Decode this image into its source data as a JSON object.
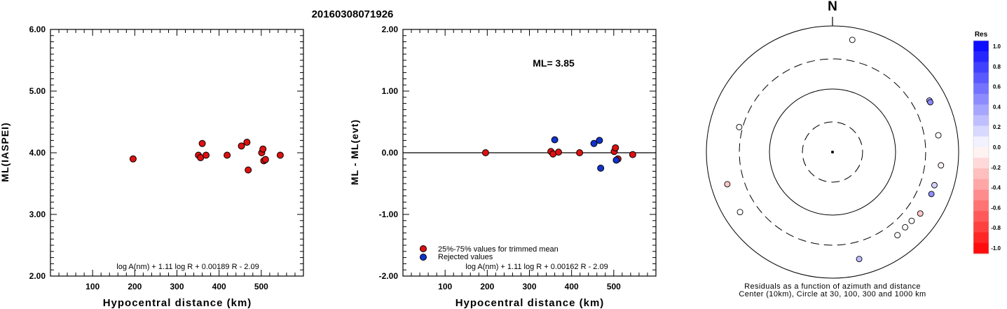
{
  "page": {
    "title": "20160308071926"
  },
  "chart_data": [
    {
      "type": "scatter",
      "title": "",
      "xlabel": "Hypocentral distance (km)",
      "ylabel": "ML(IASPEI)",
      "xlim": [
        0,
        600
      ],
      "ylim": [
        2.0,
        6.0
      ],
      "xticks": [
        "100",
        "200",
        "300",
        "400",
        "500"
      ],
      "yticks": [
        "6.00",
        "5.00",
        "4.00",
        "3.00",
        "2.00"
      ],
      "formula": "log A(nm) + 1.11 log R + 0.00189 R - 2.09",
      "marker_color": "#dd1111",
      "points": [
        {
          "x": 196,
          "y": 3.9
        },
        {
          "x": 351,
          "y": 3.96
        },
        {
          "x": 356,
          "y": 3.92
        },
        {
          "x": 360,
          "y": 4.15
        },
        {
          "x": 369,
          "y": 3.96
        },
        {
          "x": 419,
          "y": 3.96
        },
        {
          "x": 453,
          "y": 4.11
        },
        {
          "x": 466,
          "y": 4.17
        },
        {
          "x": 469,
          "y": 3.72
        },
        {
          "x": 501,
          "y": 4.0
        },
        {
          "x": 504,
          "y": 4.06
        },
        {
          "x": 506,
          "y": 3.87
        },
        {
          "x": 510,
          "y": 3.89
        },
        {
          "x": 545,
          "y": 3.96
        }
      ]
    },
    {
      "type": "scatter",
      "title": "",
      "xlabel": "Hypocentral distance (km)",
      "ylabel": "ML - ML(evt)",
      "xlim": [
        0,
        600
      ],
      "ylim": [
        -2.0,
        2.0
      ],
      "xticks": [
        "100",
        "200",
        "300",
        "400",
        "500"
      ],
      "yticks": [
        "2.00",
        "1.00",
        "0.00",
        "-1.00",
        "-2.00"
      ],
      "annotation": "ML= 3.85",
      "formula": "log A(nm) + 1.11 log R + 0.00162 R - 2.09",
      "legend": [
        {
          "label": "25%-75% values for trimmed mean",
          "color": "#dd1111"
        },
        {
          "label": "Rejected values",
          "color": "#1133cc"
        }
      ],
      "series": [
        {
          "name": "25%-75% values for trimmed mean",
          "color": "#dd1111",
          "points": [
            {
              "x": 196,
              "y": 0.0
            },
            {
              "x": 351,
              "y": 0.02
            },
            {
              "x": 356,
              "y": -0.02
            },
            {
              "x": 369,
              "y": 0.01
            },
            {
              "x": 419,
              "y": 0.0
            },
            {
              "x": 501,
              "y": 0.02
            },
            {
              "x": 504,
              "y": 0.08
            },
            {
              "x": 510,
              "y": -0.1
            },
            {
              "x": 545,
              "y": -0.03
            }
          ]
        },
        {
          "name": "Rejected values",
          "color": "#1133cc",
          "points": [
            {
              "x": 360,
              "y": 0.21
            },
            {
              "x": 453,
              "y": 0.15
            },
            {
              "x": 466,
              "y": 0.2
            },
            {
              "x": 469,
              "y": -0.25
            },
            {
              "x": 506,
              "y": -0.12
            }
          ]
        }
      ]
    },
    {
      "type": "scatter",
      "title": "N",
      "caption_line1": "Residuals as a function of azimuth and distance",
      "caption_line2": "Center (10km), Circle at 30, 100, 300 and 1000 km",
      "rings_km": [
        30,
        100,
        300,
        1000
      ],
      "colorbar": {
        "label": "Res",
        "ticks": [
          "1.0",
          "0.8",
          "0.6",
          "0.4",
          "0.2",
          "0.0",
          "-0.2",
          "-0.4",
          "-0.6",
          "-0.8",
          "-1.0"
        ],
        "max_color": "#0000ff",
        "zero_color": "#ffffff",
        "min_color": "#ff0000"
      },
      "stations": [
        {
          "azimuth_deg": 10,
          "distance_km": 640,
          "residual": 0.0
        },
        {
          "azimuth_deg": 62,
          "distance_km": 550,
          "residual": 0.15
        },
        {
          "azimuth_deg": 63,
          "distance_km": 550,
          "residual": 0.21
        },
        {
          "azimuth_deg": 81,
          "distance_km": 500,
          "residual": 0.0
        },
        {
          "azimuth_deg": 97,
          "distance_km": 540,
          "residual": -0.02
        },
        {
          "azimuth_deg": 108,
          "distance_km": 500,
          "residual": 0.08
        },
        {
          "azimuth_deg": 113,
          "distance_km": 505,
          "residual": 0.2
        },
        {
          "azimuth_deg": 125,
          "distance_km": 500,
          "residual": -0.1
        },
        {
          "azimuth_deg": 131,
          "distance_km": 460,
          "residual": 0.0
        },
        {
          "azimuth_deg": 136,
          "distance_km": 455,
          "residual": 0.0
        },
        {
          "azimuth_deg": 142,
          "distance_km": 470,
          "residual": 0.0
        },
        {
          "azimuth_deg": 166,
          "distance_km": 560,
          "residual": 0.12
        },
        {
          "azimuth_deg": 237,
          "distance_km": 560,
          "residual": 0.0
        },
        {
          "azimuth_deg": 253,
          "distance_km": 555,
          "residual": -0.1
        },
        {
          "azimuth_deg": 285,
          "distance_km": 340,
          "residual": 0.0
        }
      ]
    }
  ]
}
